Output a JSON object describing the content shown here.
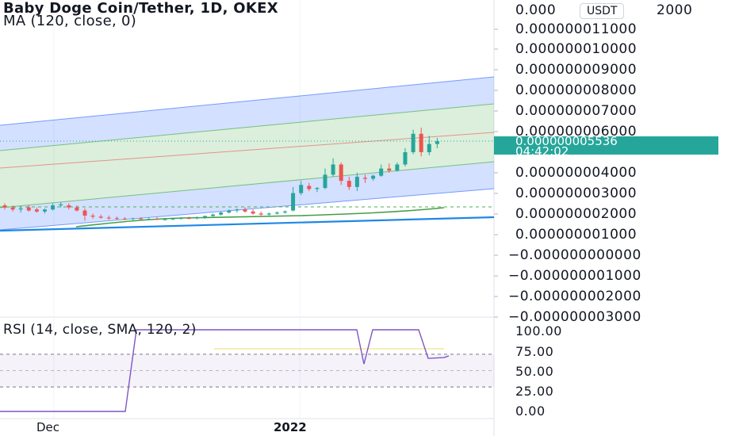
{
  "header": {
    "symbol_line": "Baby Doge Coin/Tether, 1D, OKEX",
    "indicator_line": "MA (120, close, 0)"
  },
  "price_axis": {
    "unit": "USDT",
    "top_label": "0.000",
    "top_label_tail": "2000",
    "labels": [
      "0.000000011000",
      "0.000000010000",
      "0.000000009000",
      "0.000000008000",
      "0.000000007000",
      "0.000000006000",
      "0.000000004000",
      "0.000000003000",
      "0.000000002000",
      "0.000000001000",
      "−0.000000000000",
      "−0.000000001000",
      "−0.000000002000",
      "−0.000000003000"
    ],
    "last_price": "0.000000005536",
    "countdown": "04:42:02"
  },
  "rsi": {
    "title": "RSI (14, close, SMA, 120, 2)",
    "labels": [
      "100.00",
      "75.00",
      "50.00",
      "25.00",
      "0.00"
    ]
  },
  "time_axis": {
    "labels": [
      "Dec",
      "2022"
    ]
  },
  "colors": {
    "up": "#26a69a",
    "down": "#ef5350",
    "channel_blue": "#2962ff",
    "channel_green": "#4caf50",
    "rsi_line": "#7e57c2"
  },
  "chart_data": {
    "type": "candlestick",
    "title": "Baby Doge Coin/Tether, 1D, OKEX",
    "y_unit": "USDT",
    "candles": [
      {
        "o": 2.4e-09,
        "h": 2.5e-09,
        "l": 2.2e-09,
        "c": 2.3e-09
      },
      {
        "o": 2.3e-09,
        "h": 2.4e-09,
        "l": 2.1e-09,
        "c": 2.2e-09
      },
      {
        "o": 2.2e-09,
        "h": 2.35e-09,
        "l": 2.05e-09,
        "c": 2.25e-09
      },
      {
        "o": 2.3e-09,
        "h": 2.4e-09,
        "l": 2.1e-09,
        "c": 2.15e-09
      },
      {
        "o": 2.2e-09,
        "h": 2.3e-09,
        "l": 2.05e-09,
        "c": 2.1e-09
      },
      {
        "o": 2.1e-09,
        "h": 2.25e-09,
        "l": 2e-09,
        "c": 2.2e-09
      },
      {
        "o": 2.2e-09,
        "h": 2.5e-09,
        "l": 2.15e-09,
        "c": 2.4e-09
      },
      {
        "o": 2.4e-09,
        "h": 2.55e-09,
        "l": 2.3e-09,
        "c": 2.45e-09
      },
      {
        "o": 2.4e-09,
        "h": 2.5e-09,
        "l": 2.2e-09,
        "c": 2.3e-09
      },
      {
        "o": 2.3e-09,
        "h": 2.4e-09,
        "l": 2.1e-09,
        "c": 2.15e-09
      },
      {
        "o": 2.15e-09,
        "h": 2.25e-09,
        "l": 1.65e-09,
        "c": 1.9e-09
      },
      {
        "o": 1.9e-09,
        "h": 2e-09,
        "l": 1.75e-09,
        "c": 1.85e-09
      },
      {
        "o": 1.85e-09,
        "h": 1.95e-09,
        "l": 1.75e-09,
        "c": 1.8e-09
      },
      {
        "o": 1.8e-09,
        "h": 1.9e-09,
        "l": 1.7e-09,
        "c": 1.78e-09
      },
      {
        "o": 1.78e-09,
        "h": 1.85e-09,
        "l": 1.7e-09,
        "c": 1.75e-09
      },
      {
        "o": 1.75e-09,
        "h": 1.82e-09,
        "l": 1.68e-09,
        "c": 1.73e-09
      },
      {
        "o": 1.73e-09,
        "h": 1.8e-09,
        "l": 1.68e-09,
        "c": 1.76e-09
      },
      {
        "o": 1.76e-09,
        "h": 1.82e-09,
        "l": 1.7e-09,
        "c": 1.72e-09
      },
      {
        "o": 1.72e-09,
        "h": 1.8e-09,
        "l": 1.68e-09,
        "c": 1.74e-09
      },
      {
        "o": 1.74e-09,
        "h": 1.82e-09,
        "l": 1.68e-09,
        "c": 1.7e-09
      },
      {
        "o": 1.7e-09,
        "h": 1.78e-09,
        "l": 1.66e-09,
        "c": 1.72e-09
      },
      {
        "o": 1.72e-09,
        "h": 1.8e-09,
        "l": 1.68e-09,
        "c": 1.75e-09
      },
      {
        "o": 1.75e-09,
        "h": 1.82e-09,
        "l": 1.7e-09,
        "c": 1.78e-09
      },
      {
        "o": 1.78e-09,
        "h": 1.85e-09,
        "l": 1.72e-09,
        "c": 1.76e-09
      },
      {
        "o": 1.76e-09,
        "h": 1.86e-09,
        "l": 1.72e-09,
        "c": 1.8e-09
      },
      {
        "o": 1.8e-09,
        "h": 1.9e-09,
        "l": 1.75e-09,
        "c": 1.88e-09
      },
      {
        "o": 1.88e-09,
        "h": 2e-09,
        "l": 1.85e-09,
        "c": 1.95e-09
      },
      {
        "o": 1.95e-09,
        "h": 2.1e-09,
        "l": 1.9e-09,
        "c": 2.05e-09
      },
      {
        "o": 2.05e-09,
        "h": 2.2e-09,
        "l": 2e-09,
        "c": 2.15e-09
      },
      {
        "o": 2.15e-09,
        "h": 2.25e-09,
        "l": 2.05e-09,
        "c": 2.2e-09
      },
      {
        "o": 2.2e-09,
        "h": 2.3e-09,
        "l": 2.05e-09,
        "c": 2.1e-09
      },
      {
        "o": 2.1e-09,
        "h": 2.2e-09,
        "l": 1.95e-09,
        "c": 2e-09
      },
      {
        "o": 2e-09,
        "h": 2.1e-09,
        "l": 1.9e-09,
        "c": 1.95e-09
      },
      {
        "o": 1.95e-09,
        "h": 2.05e-09,
        "l": 1.9e-09,
        "c": 2e-09
      },
      {
        "o": 2e-09,
        "h": 2.1e-09,
        "l": 1.95e-09,
        "c": 2.05e-09
      },
      {
        "o": 2.05e-09,
        "h": 2.15e-09,
        "l": 2e-09,
        "c": 2.1e-09
      },
      {
        "o": 2.15e-09,
        "h": 3.3e-09,
        "l": 2.1e-09,
        "c": 3e-09
      },
      {
        "o": 3e-09,
        "h": 3.6e-09,
        "l": 2.9e-09,
        "c": 3.4e-09
      },
      {
        "o": 3.35e-09,
        "h": 3.5e-09,
        "l": 3.1e-09,
        "c": 3.2e-09
      },
      {
        "o": 3.2e-09,
        "h": 3.3e-09,
        "l": 3.05e-09,
        "c": 3.25e-09
      },
      {
        "o": 3.25e-09,
        "h": 4.2e-09,
        "l": 3.2e-09,
        "c": 3.9e-09
      },
      {
        "o": 3.9e-09,
        "h": 4.7e-09,
        "l": 3.8e-09,
        "c": 4.4e-09
      },
      {
        "o": 4.4e-09,
        "h": 4.5e-09,
        "l": 3.4e-09,
        "c": 3.6e-09
      },
      {
        "o": 3.6e-09,
        "h": 3.8e-09,
        "l": 3.15e-09,
        "c": 3.3e-09
      },
      {
        "o": 3.3e-09,
        "h": 4e-09,
        "l": 3.1e-09,
        "c": 3.8e-09
      },
      {
        "o": 3.75e-09,
        "h": 3.9e-09,
        "l": 3.5e-09,
        "c": 3.7e-09
      },
      {
        "o": 3.7e-09,
        "h": 3.9e-09,
        "l": 3.6e-09,
        "c": 3.85e-09
      },
      {
        "o": 3.85e-09,
        "h": 4.4e-09,
        "l": 3.8e-09,
        "c": 4.2e-09
      },
      {
        "o": 4.2e-09,
        "h": 4.45e-09,
        "l": 4e-09,
        "c": 4.1e-09
      },
      {
        "o": 4.1e-09,
        "h": 4.5e-09,
        "l": 4.05e-09,
        "c": 4.4e-09
      },
      {
        "o": 4.4e-09,
        "h": 5.2e-09,
        "l": 4.3e-09,
        "c": 5e-09
      },
      {
        "o": 5e-09,
        "h": 6.1e-09,
        "l": 4.9e-09,
        "c": 5.9e-09
      },
      {
        "o": 5.9e-09,
        "h": 6.2e-09,
        "l": 4.8e-09,
        "c": 5e-09
      },
      {
        "o": 5e-09,
        "h": 5.8e-09,
        "l": 4.85e-09,
        "c": 5.4e-09
      },
      {
        "o": 5.4e-09,
        "h": 5.7e-09,
        "l": 5.2e-09,
        "c": 5.536e-09
      }
    ],
    "y_range": [
      -3.8e-09,
      1.25e-08
    ],
    "rsi_range": [
      0,
      100
    ],
    "rsi_values": [
      0,
      0,
      0,
      0,
      0,
      0,
      0,
      0,
      0,
      0,
      0,
      0,
      0,
      0,
      0,
      0,
      0,
      0,
      0,
      0,
      0,
      0,
      0,
      0,
      0,
      0,
      100,
      100,
      100,
      100,
      100,
      100,
      100,
      100,
      100,
      100,
      100,
      100,
      100,
      100,
      100,
      100,
      60,
      100,
      100,
      100,
      100,
      100,
      100,
      100,
      100,
      66,
      66,
      66,
      68
    ]
  }
}
